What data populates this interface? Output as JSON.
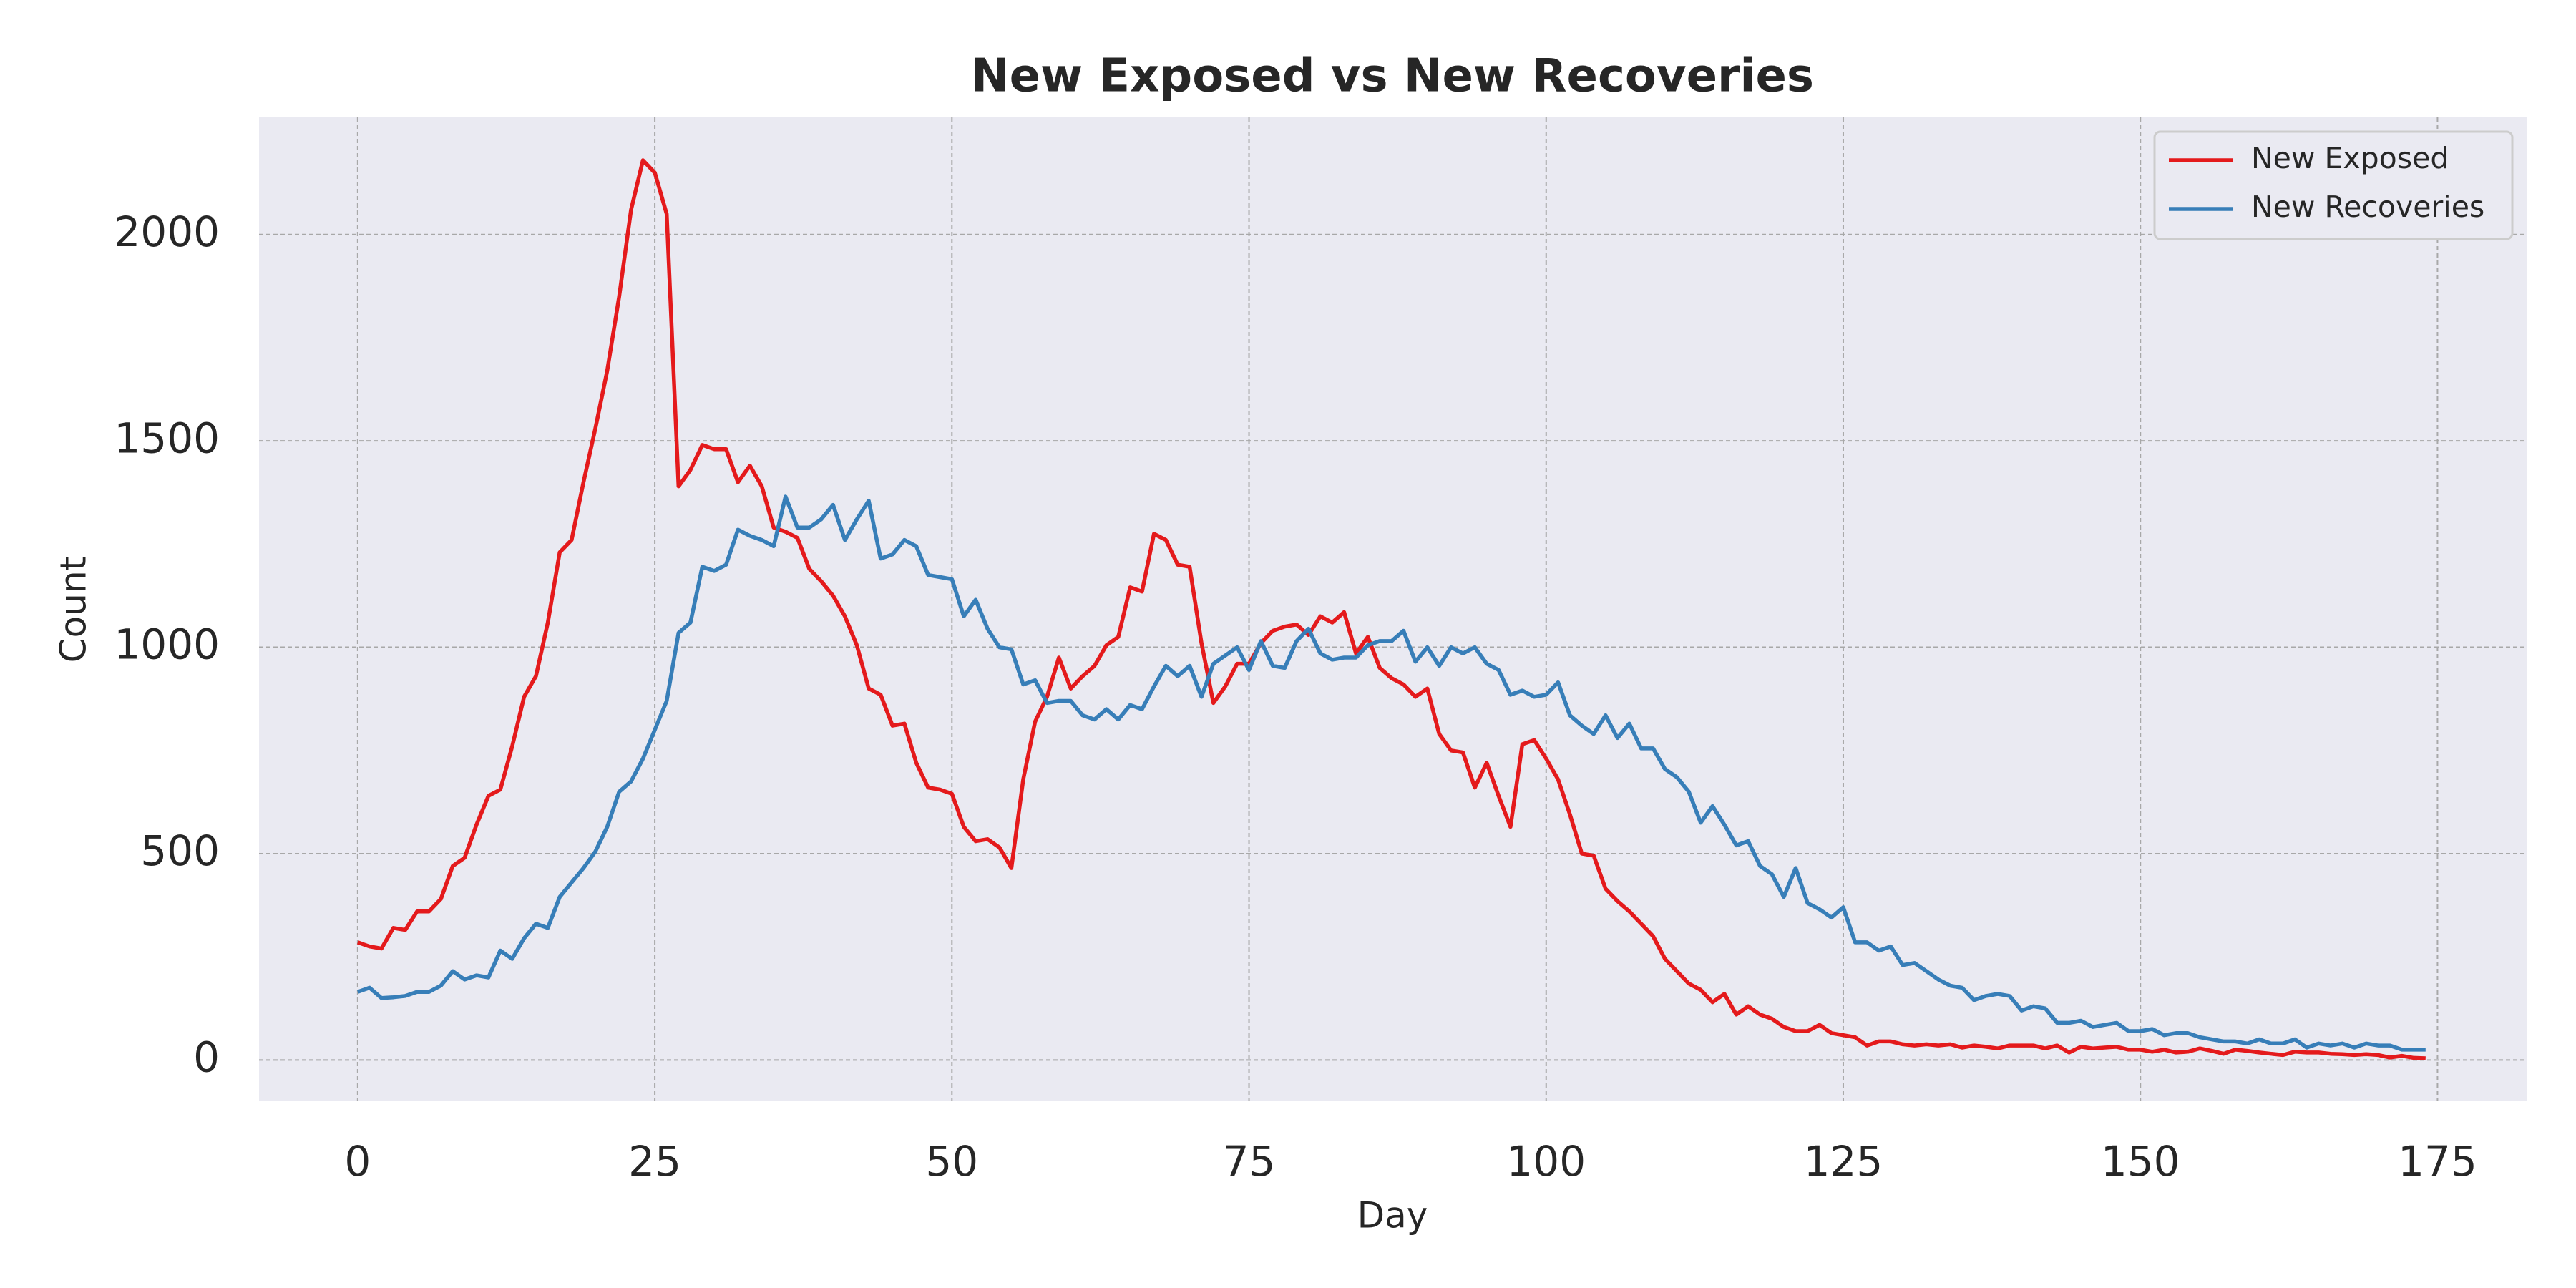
{
  "chart_data": {
    "type": "line",
    "title": "New Exposed vs New Recoveries",
    "x_label": "Day",
    "y_label": "Count",
    "x": [
      0,
      1,
      2,
      3,
      4,
      5,
      6,
      7,
      8,
      9,
      10,
      11,
      12,
      13,
      14,
      15,
      16,
      17,
      18,
      19,
      20,
      21,
      22,
      23,
      24,
      25,
      26,
      27,
      28,
      29,
      30,
      31,
      32,
      33,
      34,
      35,
      36,
      37,
      38,
      39,
      40,
      41,
      42,
      43,
      44,
      45,
      46,
      47,
      48,
      49,
      50,
      51,
      52,
      53,
      54,
      55,
      56,
      57,
      58,
      59,
      60,
      61,
      62,
      63,
      64,
      65,
      66,
      67,
      68,
      69,
      70,
      71,
      72,
      73,
      74,
      75,
      76,
      77,
      78,
      79,
      80,
      81,
      82,
      83,
      84,
      85,
      86,
      87,
      88,
      89,
      90,
      91,
      92,
      93,
      94,
      95,
      96,
      97,
      98,
      99,
      100,
      101,
      102,
      103,
      104,
      105,
      106,
      107,
      108,
      109,
      110,
      111,
      112,
      113,
      114,
      115,
      116,
      117,
      118,
      119,
      120,
      121,
      122,
      123,
      124,
      125,
      126,
      127,
      128,
      129,
      130,
      131,
      132,
      133,
      134,
      135,
      136,
      137,
      138,
      139,
      140,
      141,
      142,
      143,
      144,
      145,
      146,
      147,
      148,
      149,
      150,
      151,
      152,
      153,
      154,
      155,
      156,
      157,
      158,
      159,
      160,
      161,
      162,
      163,
      164,
      165,
      166,
      167,
      168,
      169,
      170,
      171,
      172,
      173,
      174
    ],
    "series": [
      {
        "name": "New Exposed",
        "color": "#e41a1c",
        "values": [
          285,
          275,
          270,
          320,
          315,
          360,
          360,
          390,
          470,
          490,
          570,
          640,
          655,
          760,
          880,
          930,
          1060,
          1230,
          1260,
          1400,
          1530,
          1670,
          1850,
          2060,
          2180,
          2150,
          2050,
          1390,
          1430,
          1490,
          1480,
          1480,
          1400,
          1440,
          1390,
          1290,
          1280,
          1265,
          1190,
          1160,
          1125,
          1075,
          1005,
          900,
          885,
          810,
          815,
          720,
          660,
          655,
          645,
          565,
          530,
          535,
          515,
          465,
          680,
          820,
          880,
          975,
          900,
          930,
          955,
          1005,
          1025,
          1145,
          1135,
          1275,
          1260,
          1200,
          1195,
          1010,
          865,
          905,
          960,
          960,
          1010,
          1040,
          1050,
          1055,
          1030,
          1075,
          1060,
          1085,
          985,
          1025,
          950,
          925,
          910,
          880,
          900,
          790,
          750,
          745,
          660,
          720,
          640,
          565,
          765,
          775,
          730,
          680,
          595,
          500,
          495,
          415,
          385,
          360,
          330,
          300,
          245,
          215,
          185,
          170,
          140,
          160,
          110,
          130,
          110,
          100,
          80,
          70,
          70,
          85,
          65,
          60,
          55,
          35,
          45,
          45,
          38,
          35,
          38,
          35,
          38,
          30,
          35,
          32,
          28,
          35,
          35,
          35,
          28,
          35,
          18,
          32,
          28,
          30,
          32,
          25,
          25,
          20,
          25,
          18,
          20,
          28,
          22,
          15,
          25,
          22,
          18,
          15,
          12,
          20,
          18,
          18,
          15,
          14,
          12,
          14,
          12,
          6,
          10,
          5,
          4
        ]
      },
      {
        "name": "New Recoveries",
        "color": "#377eb8",
        "values": [
          165,
          175,
          150,
          152,
          155,
          165,
          165,
          180,
          215,
          195,
          205,
          200,
          265,
          245,
          295,
          330,
          320,
          395,
          430,
          465,
          505,
          565,
          650,
          675,
          730,
          800,
          870,
          1035,
          1060,
          1195,
          1185,
          1200,
          1285,
          1270,
          1260,
          1245,
          1365,
          1290,
          1290,
          1310,
          1345,
          1260,
          1310,
          1355,
          1215,
          1225,
          1260,
          1245,
          1175,
          1170,
          1165,
          1075,
          1115,
          1045,
          1000,
          995,
          910,
          920,
          865,
          870,
          870,
          835,
          825,
          850,
          825,
          860,
          850,
          905,
          955,
          930,
          955,
          880,
          960,
          980,
          1000,
          945,
          1015,
          955,
          950,
          1015,
          1045,
          985,
          970,
          975,
          975,
          1005,
          1015,
          1015,
          1040,
          965,
          1000,
          955,
          1000,
          985,
          1000,
          960,
          945,
          885,
          895,
          880,
          885,
          915,
          835,
          810,
          790,
          835,
          780,
          815,
          755,
          755,
          705,
          685,
          650,
          575,
          615,
          570,
          520,
          530,
          470,
          450,
          395,
          465,
          380,
          365,
          345,
          370,
          285,
          285,
          265,
          275,
          230,
          235,
          215,
          195,
          180,
          175,
          145,
          155,
          160,
          155,
          120,
          130,
          125,
          90,
          90,
          95,
          80,
          85,
          90,
          70,
          70,
          75,
          60,
          65,
          65,
          55,
          50,
          45,
          45,
          40,
          50,
          40,
          40,
          50,
          30,
          40,
          35,
          40,
          30,
          40,
          35,
          35,
          25,
          25,
          25
        ]
      }
    ],
    "xlim": [
      -8.3,
      182.5
    ],
    "ylim": [
      -100,
      2284
    ],
    "xticks": [
      0,
      25,
      50,
      75,
      100,
      125,
      150,
      175
    ],
    "yticks": [
      0,
      500,
      1000,
      1500,
      2000
    ],
    "grid": true,
    "legend": "upper right"
  }
}
